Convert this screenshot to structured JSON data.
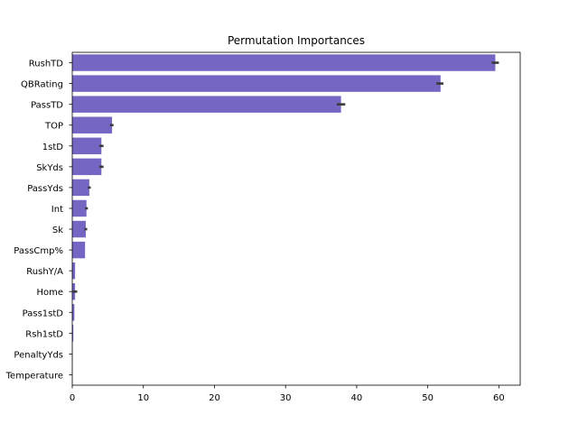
{
  "chart_data": {
    "type": "bar",
    "orientation": "horizontal",
    "title": "Permutation Importances",
    "xlabel": "",
    "ylabel": "",
    "xlim": [
      0,
      63
    ],
    "xticks": [
      "0",
      "10",
      "20",
      "30",
      "40",
      "50",
      "60"
    ],
    "bar_color": "#7566c4",
    "errorbar_color": "#3b3b3b",
    "grid": false,
    "legend": "none",
    "categories": [
      "RushTD",
      "QBRating",
      "PassTD",
      "TOP",
      "1stD",
      "SkYds",
      "PassYds",
      "Int",
      "Sk",
      "PassCmp%",
      "RushY/A",
      "Home",
      "Pass1stD",
      "Rsh1stD",
      "PenaltyYds",
      "Temperature"
    ],
    "values": [
      59.5,
      51.8,
      37.8,
      5.6,
      4.1,
      4.1,
      2.4,
      2.0,
      1.9,
      1.8,
      0.4,
      0.4,
      0.3,
      0.15,
      0.05,
      0.02
    ],
    "error_low": [
      59.0,
      51.2,
      37.2,
      5.3,
      3.8,
      3.8,
      2.2,
      1.8,
      1.7,
      1.8,
      0.4,
      0.1,
      0.3,
      0.15,
      0.05,
      0.02
    ],
    "error_high": [
      60.0,
      52.2,
      38.4,
      5.8,
      4.4,
      4.4,
      2.6,
      2.2,
      2.1,
      1.8,
      0.4,
      0.7,
      0.3,
      0.15,
      0.05,
      0.02
    ]
  }
}
